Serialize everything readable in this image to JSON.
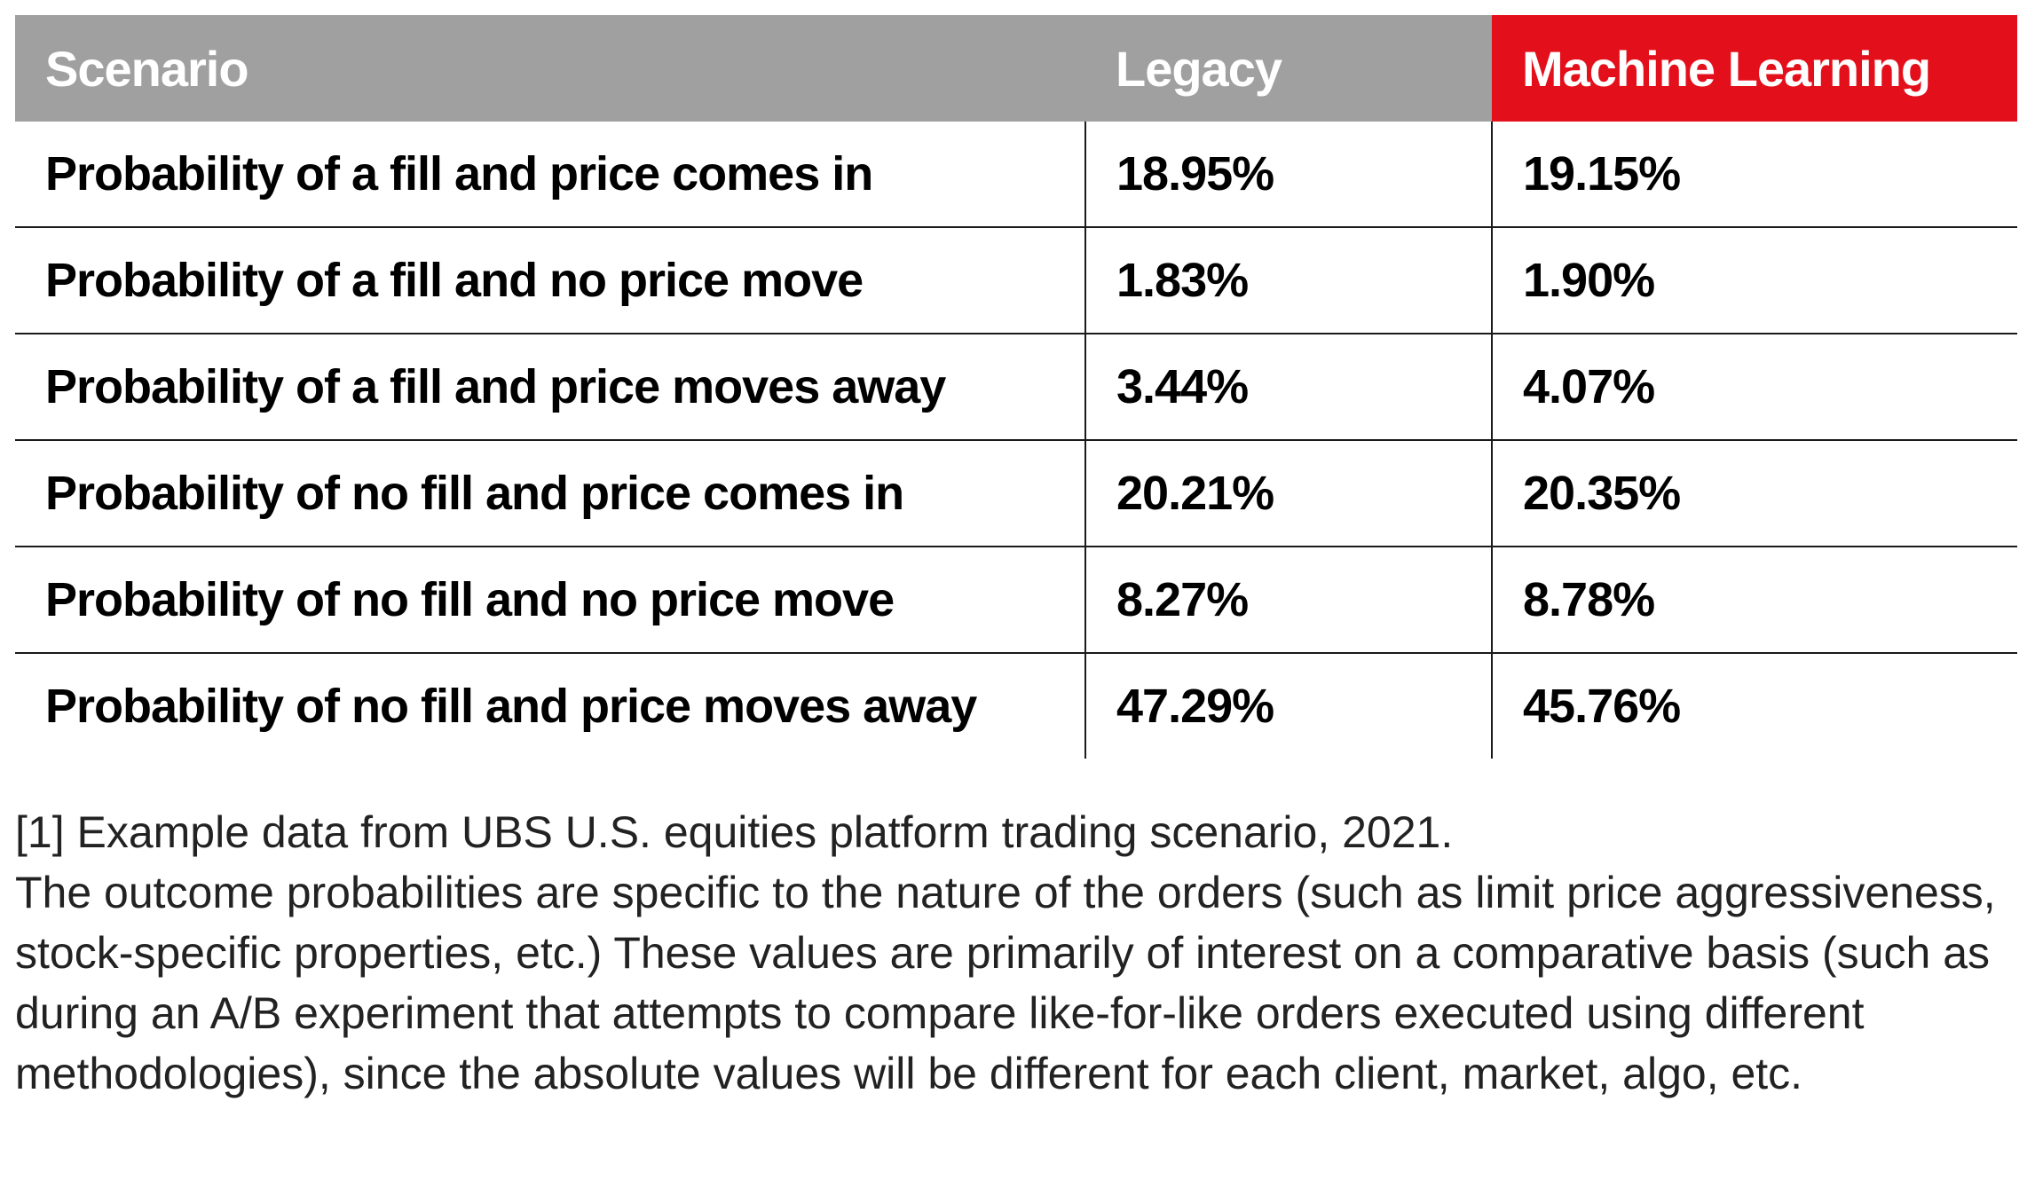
{
  "table": {
    "headers": {
      "scenario": "Scenario",
      "legacy": "Legacy",
      "ml": "Machine Learning"
    },
    "rows": [
      {
        "scenario": "Probability of a fill and price comes in",
        "legacy": "18.95%",
        "ml": "19.15%"
      },
      {
        "scenario": "Probability of a fill and no price move",
        "legacy": "1.83%",
        "ml": "1.90%"
      },
      {
        "scenario": "Probability of a fill and price moves away",
        "legacy": "3.44%",
        "ml": "4.07%"
      },
      {
        "scenario": "Probability of no fill and price comes in",
        "legacy": "20.21%",
        "ml": "20.35%"
      },
      {
        "scenario": "Probability of no fill and no price move",
        "legacy": "8.27%",
        "ml": "8.78%"
      },
      {
        "scenario": "Probability of no fill and price moves away",
        "legacy": "47.29%",
        "ml": "45.76%"
      }
    ]
  },
  "footnote": {
    "source": "[1] Example data from UBS U.S. equities platform trading scenario, 2021.",
    "body": "The outcome probabilities are specific to the nature of the orders (such as limit price aggressiveness, stock-specific properties, etc.) These values are primarily of interest on a comparative basis (such as during an A/B experiment that attempts to compare like-for-like orders executed using different methodologies), since the absolute values will be different for each client, market, algo, etc."
  },
  "colors": {
    "header_gray": "#a0a0a0",
    "header_red": "#e3101b"
  }
}
